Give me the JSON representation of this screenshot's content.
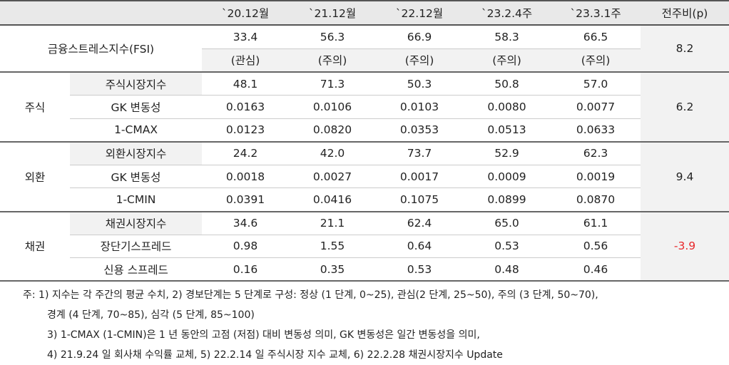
{
  "header": {
    "blank": "",
    "cols": [
      "`20.12월",
      "`21.12월",
      "`22.12월",
      "`23.2.4주",
      "`23.3.1주"
    ],
    "change": "전주비(p)"
  },
  "fsi": {
    "label": "금융스트레스지수(FSI)",
    "values": [
      "33.4",
      "56.3",
      "66.9",
      "58.3",
      "66.5"
    ],
    "stages": [
      "(관심)",
      "(주의)",
      "(주의)",
      "(주의)",
      "(주의)"
    ],
    "change": "8.2"
  },
  "groups": [
    {
      "name": "주식",
      "change": "6.2",
      "rows": [
        {
          "label": "주식시장지수",
          "values": [
            "48.1",
            "71.3",
            "50.3",
            "50.8",
            "57.0"
          ]
        },
        {
          "label": "GK 변동성",
          "values": [
            "0.0163",
            "0.0106",
            "0.0103",
            "0.0080",
            "0.0077"
          ]
        },
        {
          "label": "1-CMAX",
          "values": [
            "0.0123",
            "0.0820",
            "0.0353",
            "0.0513",
            "0.0633"
          ]
        }
      ]
    },
    {
      "name": "외환",
      "change": "9.4",
      "rows": [
        {
          "label": "외환시장지수",
          "values": [
            "24.2",
            "42.0",
            "73.7",
            "52.9",
            "62.3"
          ]
        },
        {
          "label": "GK 변동성",
          "values": [
            "0.0018",
            "0.0027",
            "0.0017",
            "0.0009",
            "0.0019"
          ]
        },
        {
          "label": "1-CMIN",
          "values": [
            "0.0391",
            "0.0416",
            "0.1075",
            "0.0899",
            "0.0870"
          ]
        }
      ]
    },
    {
      "name": "채권",
      "change": "-3.9",
      "rows": [
        {
          "label": "채권시장지수",
          "values": [
            "34.6",
            "21.1",
            "62.4",
            "65.0",
            "61.1"
          ]
        },
        {
          "label": "장단기스프레드",
          "values": [
            "0.98",
            "1.55",
            "0.64",
            "0.53",
            "0.56"
          ]
        },
        {
          "label": "신용 스프레드",
          "values": [
            "0.16",
            "0.35",
            "0.53",
            "0.48",
            "0.46"
          ]
        }
      ]
    }
  ],
  "notes": [
    "주: 1) 지수는 각 주간의 평균 수치, 2) 경보단계는 5 단계로 구성: 정상 (1 단계, 0~25), 관심(2 단계, 25~50), 주의 (3 단계, 50~70),",
    "경계 (4 단계, 70~85), 심각 (5 단계, 85~100)",
    "3) 1-CMAX (1-CMIN)은 1 년 동안의 고점 (저점) 대비 변동성 의미, GK 변동성은 일간 변동성을 의미,",
    "4) 21.9.24 일 회사채 수익률 교체, 5) 22.2.14 일 주식시장 지수 교체, 6) 22.2.28 채권시장지수 Update"
  ],
  "colors": {
    "header_bg": "#e9e9e9",
    "highlight_bg": "#f2f2f2",
    "negative": "#e8282b"
  }
}
